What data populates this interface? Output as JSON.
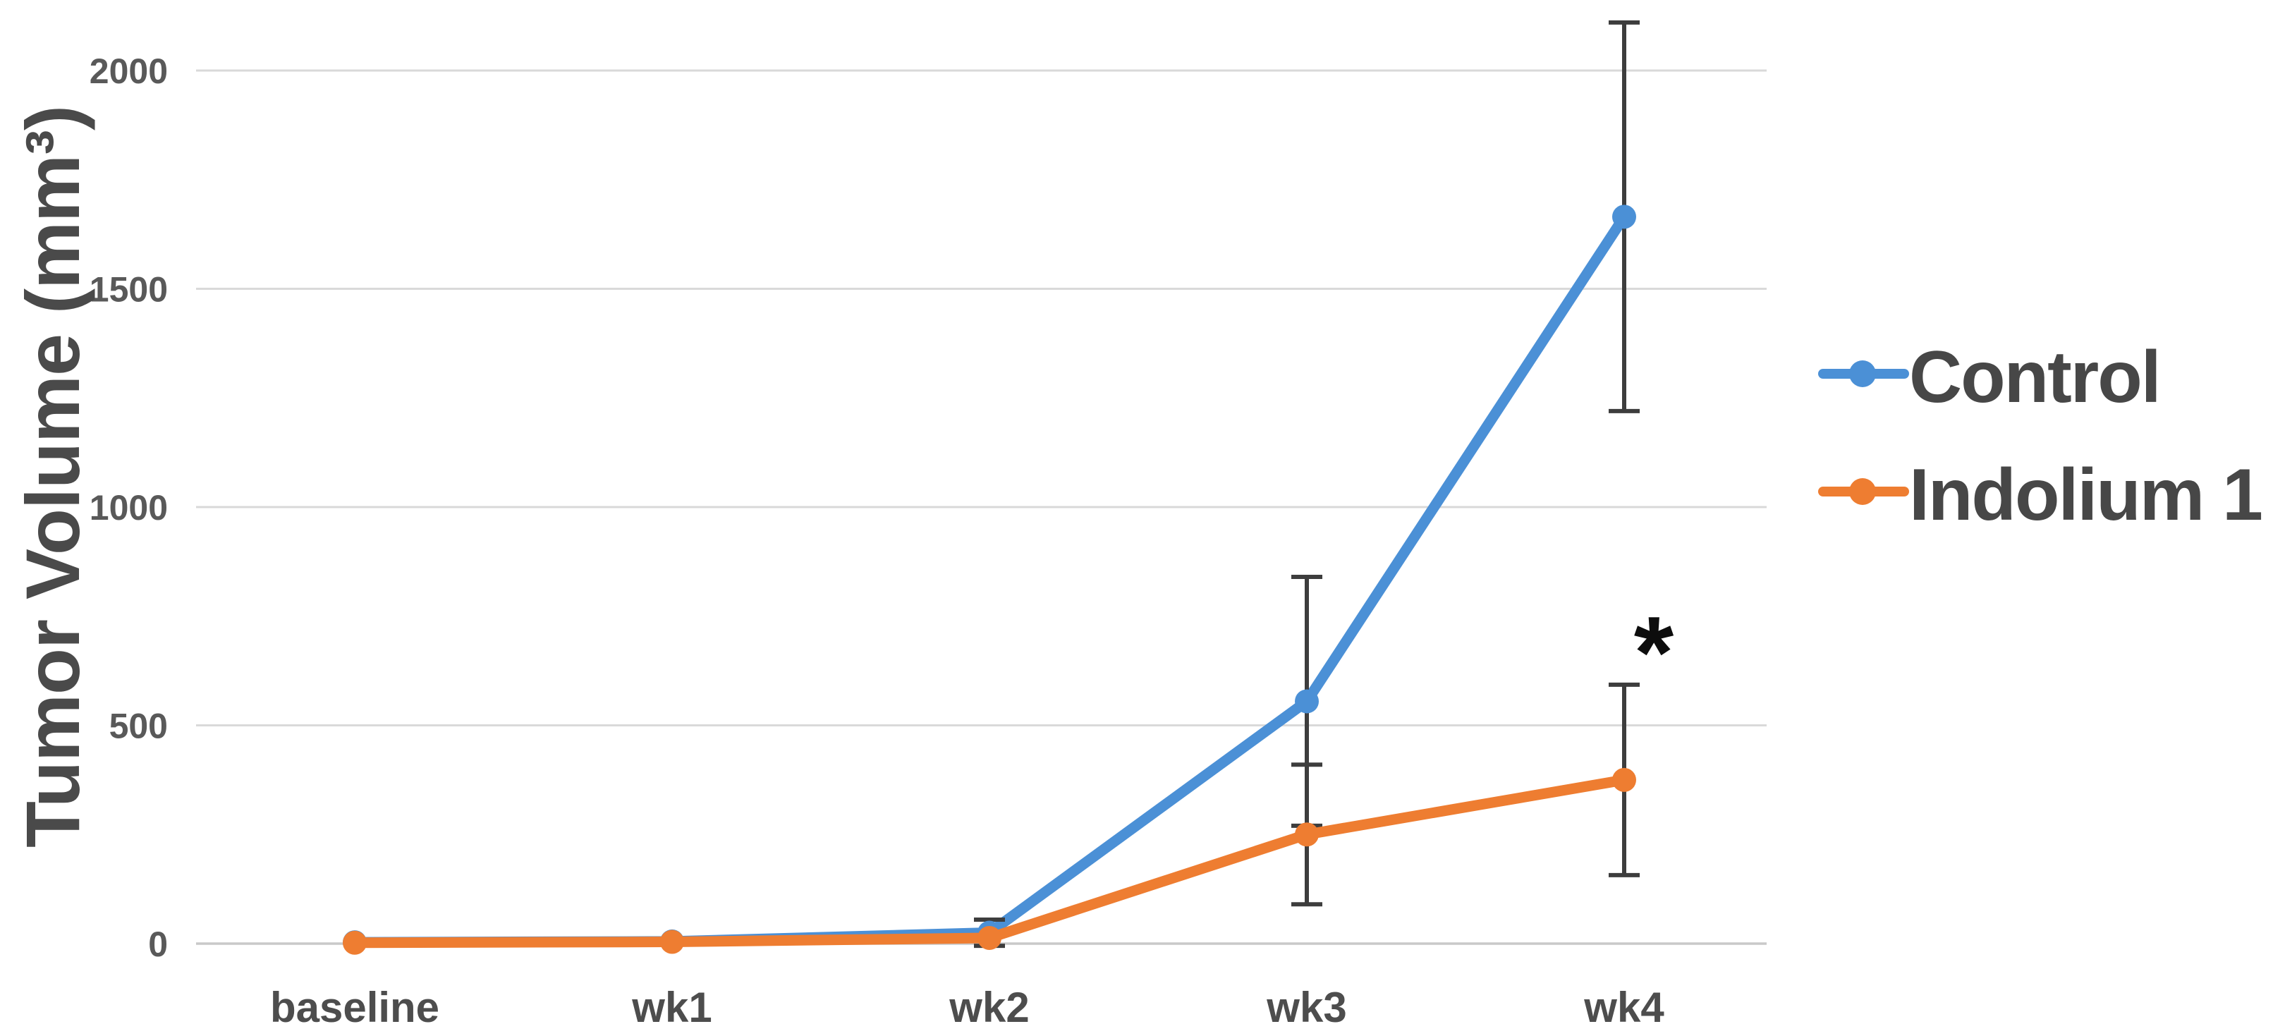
{
  "chart_data": {
    "type": "line",
    "title": "",
    "xlabel": "",
    "ylabel": "Tumor Volume (mm³)",
    "categories": [
      "baseline",
      "wk1",
      "wk2",
      "wk3",
      "wk4"
    ],
    "series": [
      {
        "name": "Control",
        "color": "#4B90D6",
        "marker": "circle",
        "values": [
          3,
          5,
          25,
          555,
          1665
        ],
        "error_bars": [
          0,
          0,
          30,
          285,
          445
        ]
      },
      {
        "name": "Indolium 1",
        "color": "#EE7D31",
        "marker": "circle",
        "values": [
          2,
          4,
          13,
          250,
          375
        ],
        "error_bars": [
          0,
          0,
          0,
          160,
          218
        ]
      }
    ],
    "ylim": [
      0,
      2000
    ],
    "yticks": [
      0,
      500,
      1000,
      1500,
      2000
    ],
    "ytick_labels": [
      "0",
      "500",
      "1000",
      "1500",
      "2000"
    ],
    "grid": "horizontal",
    "legend_position": "right-middle",
    "annotation": {
      "symbol": "*",
      "series": "Indolium 1",
      "category": "wk4"
    }
  },
  "style_colors": {
    "background": "#ffffff",
    "gridline": "#d9d9d9",
    "axis_line": "#c9c9c9",
    "error_bar": "#3d3d3d",
    "tick_label": "#595959",
    "category_label": "#4d4d4d",
    "legend_text": "#474747",
    "axis_title": "#4a4a4a",
    "annotation": "#0d0d0d"
  }
}
